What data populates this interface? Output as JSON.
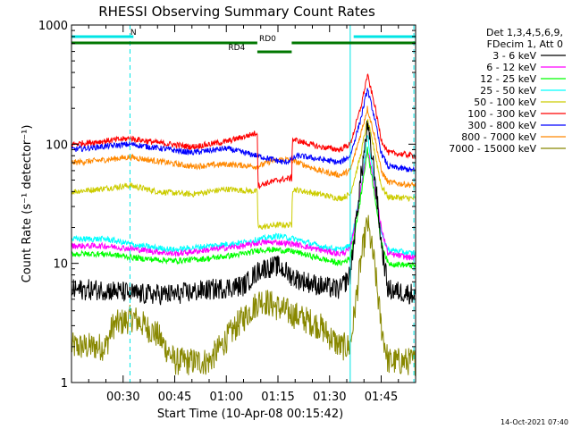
{
  "chart_data": {
    "type": "line",
    "title": "RHESSI Observing Summary Count Rates",
    "xlabel": "Start Time (10-Apr-08 00:15:42)",
    "ylabel": "Count Rate (s⁻¹ detector⁻¹)",
    "yscale": "log",
    "ylim": [
      1,
      1000
    ],
    "xlim_minutes": [
      0,
      100
    ],
    "x_ticks": [
      {
        "t": 15,
        "label": "00:30"
      },
      {
        "t": 30,
        "label": "00:45"
      },
      {
        "t": 45,
        "label": "01:00"
      },
      {
        "t": 60,
        "label": "01:15"
      },
      {
        "t": 75,
        "label": "01:30"
      },
      {
        "t": 90,
        "label": "01:45"
      }
    ],
    "y_ticks": [
      {
        "v": 1,
        "label": "1"
      },
      {
        "v": 10,
        "label": "10"
      },
      {
        "v": 100,
        "label": "100"
      },
      {
        "v": 1000,
        "label": "1000"
      }
    ],
    "legend_header": [
      "Det 1,3,4,5,6,9,",
      "FDecim 1, Att 0"
    ],
    "legend_position": "right",
    "footer": "14-Oct-2021 07:40",
    "flags": [
      {
        "label": "N",
        "color": "#00e5e5",
        "segments": [
          [
            0,
            18
          ],
          [
            82,
            100
          ]
        ],
        "label_at": 18
      },
      {
        "label": "RD0",
        "color": "#007700",
        "segments": [
          [
            0,
            54
          ],
          [
            64,
            100
          ]
        ],
        "label_at": 57
      },
      {
        "label": "RD4",
        "color": "#007700",
        "segments": [
          [
            54,
            64
          ]
        ],
        "label_at": 48
      }
    ],
    "vlines": [
      {
        "t": 0,
        "style": "solid"
      },
      {
        "t": 17,
        "style": "dashed"
      },
      {
        "t": 81,
        "style": "solid"
      },
      {
        "t": 99.5,
        "style": "dashed"
      }
    ],
    "series": [
      {
        "name": "3 - 6 keV",
        "color": "#000000",
        "points": [
          [
            0,
            6
          ],
          [
            10,
            6
          ],
          [
            20,
            5.5
          ],
          [
            30,
            5.5
          ],
          [
            40,
            6
          ],
          [
            50,
            6.5
          ],
          [
            55,
            9
          ],
          [
            60,
            9.5
          ],
          [
            65,
            7.5
          ],
          [
            72,
            6.5
          ],
          [
            78,
            6
          ],
          [
            81,
            8
          ],
          [
            84,
            50
          ],
          [
            86,
            140
          ],
          [
            88,
            60
          ],
          [
            90,
            15
          ],
          [
            92,
            6
          ],
          [
            100,
            5.5
          ]
        ]
      },
      {
        "name": "6 - 12 keV",
        "color": "#ff00ff",
        "points": [
          [
            0,
            14
          ],
          [
            10,
            14
          ],
          [
            20,
            13
          ],
          [
            30,
            12
          ],
          [
            40,
            13
          ],
          [
            50,
            14
          ],
          [
            55,
            15
          ],
          [
            60,
            15
          ],
          [
            65,
            14.5
          ],
          [
            72,
            13
          ],
          [
            78,
            12
          ],
          [
            81,
            13
          ],
          [
            84,
            40
          ],
          [
            86,
            95
          ],
          [
            88,
            45
          ],
          [
            90,
            20
          ],
          [
            92,
            12
          ],
          [
            100,
            11
          ]
        ]
      },
      {
        "name": "12 - 25 keV",
        "color": "#00ff00",
        "points": [
          [
            0,
            12
          ],
          [
            10,
            12
          ],
          [
            20,
            11
          ],
          [
            30,
            10.5
          ],
          [
            40,
            11
          ],
          [
            50,
            12
          ],
          [
            55,
            13
          ],
          [
            60,
            13
          ],
          [
            65,
            12.5
          ],
          [
            72,
            11
          ],
          [
            78,
            10
          ],
          [
            81,
            11
          ],
          [
            84,
            35
          ],
          [
            86,
            90
          ],
          [
            88,
            40
          ],
          [
            90,
            15
          ],
          [
            92,
            10
          ],
          [
            100,
            9.5
          ]
        ]
      },
      {
        "name": "25 - 50 keV",
        "color": "#00ffff",
        "points": [
          [
            0,
            16
          ],
          [
            10,
            16
          ],
          [
            20,
            14
          ],
          [
            30,
            13
          ],
          [
            40,
            14
          ],
          [
            50,
            15
          ],
          [
            55,
            16
          ],
          [
            60,
            17
          ],
          [
            65,
            16
          ],
          [
            72,
            14
          ],
          [
            78,
            13
          ],
          [
            81,
            14
          ],
          [
            84,
            40
          ],
          [
            86,
            120
          ],
          [
            88,
            50
          ],
          [
            90,
            18
          ],
          [
            92,
            13
          ],
          [
            100,
            12
          ]
        ]
      },
      {
        "name": "50 - 100 keV",
        "color": "#cccc00",
        "points": [
          [
            0,
            40
          ],
          [
            8,
            42
          ],
          [
            17,
            45
          ],
          [
            25,
            40
          ],
          [
            35,
            38
          ],
          [
            45,
            42
          ],
          [
            54,
            40
          ],
          [
            54.2,
            20
          ],
          [
            60,
            21
          ],
          [
            64,
            21
          ],
          [
            64.2,
            42
          ],
          [
            72,
            38
          ],
          [
            78,
            35
          ],
          [
            81,
            38
          ],
          [
            84,
            80
          ],
          [
            86,
            160
          ],
          [
            88,
            90
          ],
          [
            90,
            45
          ],
          [
            92,
            36
          ],
          [
            100,
            35
          ]
        ]
      },
      {
        "name": "100 - 300 keV",
        "color": "#ff0000",
        "points": [
          [
            0,
            100
          ],
          [
            8,
            105
          ],
          [
            17,
            112
          ],
          [
            25,
            103
          ],
          [
            35,
            95
          ],
          [
            45,
            105
          ],
          [
            52,
            120
          ],
          [
            54,
            125
          ],
          [
            54.2,
            45
          ],
          [
            60,
            50
          ],
          [
            64,
            52
          ],
          [
            64.2,
            110
          ],
          [
            72,
            95
          ],
          [
            78,
            90
          ],
          [
            81,
            100
          ],
          [
            84,
            200
          ],
          [
            86,
            380
          ],
          [
            88,
            220
          ],
          [
            90,
            110
          ],
          [
            92,
            85
          ],
          [
            100,
            80
          ]
        ]
      },
      {
        "name": "300 - 800 keV",
        "color": "#0000ff",
        "points": [
          [
            0,
            90
          ],
          [
            8,
            95
          ],
          [
            17,
            100
          ],
          [
            25,
            93
          ],
          [
            35,
            85
          ],
          [
            45,
            92
          ],
          [
            54,
            80
          ],
          [
            58,
            75
          ],
          [
            62,
            70
          ],
          [
            66,
            80
          ],
          [
            72,
            75
          ],
          [
            78,
            70
          ],
          [
            81,
            80
          ],
          [
            84,
            160
          ],
          [
            86,
            290
          ],
          [
            88,
            170
          ],
          [
            90,
            85
          ],
          [
            92,
            65
          ],
          [
            100,
            60
          ]
        ]
      },
      {
        "name": "800 - 7000 keV",
        "color": "#ff8800",
        "points": [
          [
            0,
            70
          ],
          [
            8,
            73
          ],
          [
            17,
            78
          ],
          [
            25,
            72
          ],
          [
            35,
            65
          ],
          [
            45,
            68
          ],
          [
            54,
            65
          ],
          [
            58,
            72
          ],
          [
            62,
            75
          ],
          [
            66,
            70
          ],
          [
            72,
            60
          ],
          [
            78,
            55
          ],
          [
            81,
            60
          ],
          [
            84,
            120
          ],
          [
            86,
            200
          ],
          [
            88,
            120
          ],
          [
            90,
            60
          ],
          [
            92,
            48
          ],
          [
            100,
            45
          ]
        ]
      },
      {
        "name": "7000 - 15000 keV",
        "color": "#888800",
        "points": [
          [
            0,
            2
          ],
          [
            10,
            2
          ],
          [
            12,
            3
          ],
          [
            18,
            3.5
          ],
          [
            25,
            2.5
          ],
          [
            30,
            1.5
          ],
          [
            40,
            1.5
          ],
          [
            48,
            3
          ],
          [
            55,
            5
          ],
          [
            62,
            4
          ],
          [
            72,
            3
          ],
          [
            78,
            2
          ],
          [
            81,
            2
          ],
          [
            84,
            10
          ],
          [
            86,
            22
          ],
          [
            88,
            10
          ],
          [
            90,
            3
          ],
          [
            92,
            1.5
          ],
          [
            100,
            1.5
          ]
        ]
      }
    ]
  }
}
